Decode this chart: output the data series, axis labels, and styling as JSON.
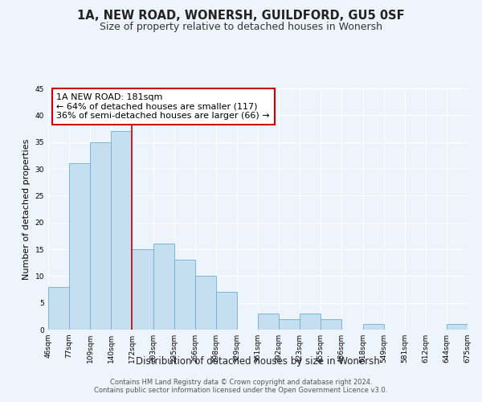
{
  "title": "1A, NEW ROAD, WONERSH, GUILDFORD, GU5 0SF",
  "subtitle": "Size of property relative to detached houses in Wonersh",
  "xlabel": "Distribution of detached houses by size in Wonersh",
  "ylabel": "Number of detached properties",
  "bin_labels": [
    "46sqm",
    "77sqm",
    "109sqm",
    "140sqm",
    "172sqm",
    "203sqm",
    "235sqm",
    "266sqm",
    "298sqm",
    "329sqm",
    "361sqm",
    "392sqm",
    "423sqm",
    "455sqm",
    "486sqm",
    "518sqm",
    "549sqm",
    "581sqm",
    "612sqm",
    "644sqm",
    "675sqm"
  ],
  "bar_heights": [
    8,
    31,
    35,
    37,
    15,
    16,
    13,
    10,
    7,
    0,
    3,
    2,
    3,
    2,
    0,
    1,
    0,
    0,
    0,
    1
  ],
  "bar_color": "#c5dff0",
  "bar_edge_color": "#6baed6",
  "vline_color": "#cc0000",
  "ylim": [
    0,
    45
  ],
  "yticks": [
    0,
    5,
    10,
    15,
    20,
    25,
    30,
    35,
    40,
    45
  ],
  "annotation_text": "1A NEW ROAD: 181sqm\n← 64% of detached houses are smaller (117)\n36% of semi-detached houses are larger (66) →",
  "footer_text": "Contains HM Land Registry data © Crown copyright and database right 2024.\nContains public sector information licensed under the Open Government Licence v3.0.",
  "background_color": "#eef4fb",
  "plot_background_color": "#eef4fb",
  "grid_color": "#ffffff",
  "title_fontsize": 10.5,
  "subtitle_fontsize": 9,
  "xlabel_fontsize": 8.5,
  "ylabel_fontsize": 8,
  "tick_fontsize": 6.5,
  "annotation_fontsize": 8,
  "footer_fontsize": 6
}
